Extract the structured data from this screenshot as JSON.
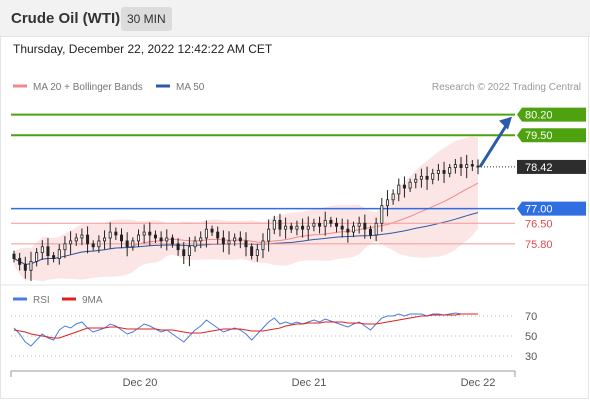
{
  "header": {
    "title": "Crude Oil (WTI)",
    "timeframe": "30 MIN",
    "datetime": "Thursday, December 22, 2022 12:42:22 AM CET"
  },
  "chart_data": [
    {
      "type": "candlestick",
      "legend": [
        {
          "name": "MA 20 + Bollinger Bands",
          "color": "#f08a8a"
        },
        {
          "name": "MA 50",
          "color": "#2b5aa8"
        }
      ],
      "credit": "Research © 2022 Trading Central",
      "y_range": [
        74.5,
        80.7
      ],
      "x_ticks": [
        "Dec 20",
        "Dec 21",
        "Dec 22"
      ],
      "levels": [
        {
          "value": 80.2,
          "label": "80.20",
          "kind": "target",
          "color": "#4ea20f"
        },
        {
          "value": 79.5,
          "label": "79.50",
          "kind": "target",
          "color": "#4ea20f"
        },
        {
          "value": 78.42,
          "label": "78.42",
          "kind": "last",
          "color": "#2d2d2d"
        },
        {
          "value": 77.0,
          "label": "77.00",
          "kind": "pivot",
          "color": "#2f6ee0"
        },
        {
          "value": 76.5,
          "label": "76.50",
          "kind": "support",
          "color": "#e34a4a"
        },
        {
          "value": 75.8,
          "label": "75.80",
          "kind": "support",
          "color": "#e34a4a"
        }
      ],
      "close_series": [
        75.3,
        75.1,
        74.9,
        75.2,
        75.5,
        75.7,
        75.4,
        75.3,
        75.6,
        75.8,
        75.9,
        76.0,
        76.1,
        75.8,
        75.7,
        75.9,
        76.0,
        76.2,
        76.1,
        75.9,
        75.7,
        75.9,
        76.1,
        76.2,
        76.1,
        76.0,
        75.9,
        76.0,
        75.8,
        75.6,
        75.4,
        75.7,
        75.9,
        76.0,
        76.3,
        76.2,
        76.0,
        75.8,
        75.9,
        76.0,
        75.9,
        75.7,
        75.4,
        75.6,
        75.9,
        76.3,
        76.6,
        76.3,
        76.4,
        76.3,
        76.4,
        76.3,
        76.4,
        76.5,
        76.4,
        76.6,
        76.5,
        76.4,
        76.3,
        76.2,
        76.4,
        76.5,
        76.3,
        76.1,
        76.5,
        77.1,
        77.3,
        77.5,
        77.8,
        77.7,
        77.9,
        78.0,
        78.1,
        78.0,
        78.2,
        78.3,
        78.2,
        78.4,
        78.5,
        78.4,
        78.5,
        78.45,
        78.42
      ]
    },
    {
      "type": "line",
      "legend": [
        {
          "name": "RSI",
          "color": "#4a7be0"
        },
        {
          "name": "9MA",
          "color": "#e02020"
        }
      ],
      "y_range": [
        20,
        80
      ],
      "y_ticks": [
        70,
        50,
        30
      ],
      "series": [
        {
          "name": "RSI",
          "values": [
            58,
            52,
            44,
            40,
            46,
            52,
            48,
            46,
            56,
            60,
            58,
            62,
            64,
            58,
            54,
            56,
            58,
            62,
            60,
            56,
            52,
            54,
            58,
            62,
            60,
            57,
            54,
            56,
            52,
            48,
            44,
            50,
            56,
            60,
            66,
            62,
            58,
            54,
            56,
            58,
            56,
            52,
            46,
            52,
            58,
            64,
            68,
            62,
            64,
            62,
            64,
            62,
            64,
            66,
            64,
            67,
            65,
            63,
            61,
            59,
            62,
            64,
            60,
            56,
            62,
            68,
            70,
            70,
            72,
            70,
            72,
            72,
            72,
            70,
            72,
            72,
            71,
            72,
            73,
            72,
            72,
            72,
            72
          ]
        },
        {
          "name": "9MA",
          "values": [
            56,
            55,
            54,
            52,
            51,
            50,
            49,
            48,
            48,
            50,
            52,
            54,
            56,
            58,
            58,
            58,
            58,
            59,
            59,
            58,
            57,
            57,
            57,
            57,
            57,
            57,
            56,
            56,
            56,
            55,
            54,
            53,
            53,
            53,
            54,
            55,
            56,
            57,
            57,
            57,
            57,
            56,
            55,
            55,
            55,
            56,
            57,
            58,
            60,
            61,
            62,
            62,
            63,
            63,
            63,
            64,
            64,
            64,
            64,
            63,
            63,
            63,
            62,
            62,
            62,
            63,
            64,
            65,
            66,
            67,
            68,
            69,
            70,
            70,
            71,
            71,
            71,
            71,
            71,
            72,
            72,
            72,
            72
          ]
        }
      ]
    }
  ]
}
